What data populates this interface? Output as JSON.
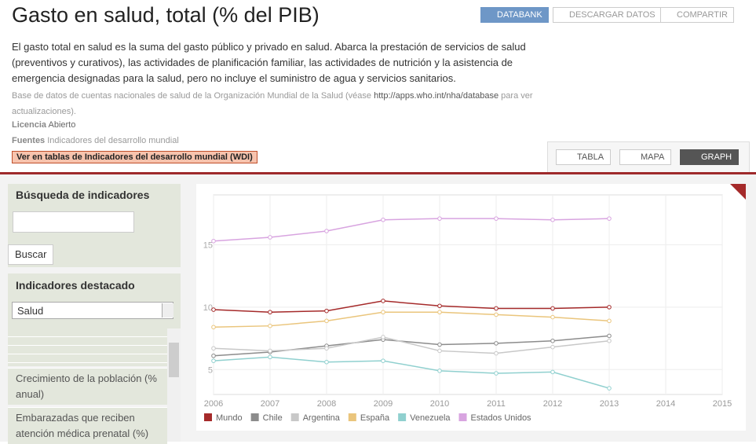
{
  "header": {
    "title": "Gasto en salud, total (% del PIB)",
    "buttons": [
      "DATABANK",
      "DESCARGAR DATOS",
      "COMPARTIR"
    ]
  },
  "description": "El gasto total en salud es la suma del gasto público y privado en salud. Abarca la prestación de servicios de salud (preventivos y curativos), las actividades de planificación familiar, las actividades de nutrición y la asistencia de emergencia designadas para la salud, pero no incluye el suministro de agua y servicios sanitarios.",
  "source": {
    "before": "Base de datos de cuentas nacionales de salud de la Organización Mundial de la Salud (véase",
    "link": "http://apps.who.int/nha/database",
    "after": "para ver actualizaciones)."
  },
  "license": {
    "label": "Licencia",
    "value": "Abierto"
  },
  "sources": {
    "label": "Fuentes",
    "value": "Indicadores del desarrollo mundial"
  },
  "wdi_link": "Ver en tablas de Indicadores del desarrollo mundial (WDI)",
  "tabs": [
    "TABLA",
    "MAPA",
    "GRAPH"
  ],
  "sidebar": {
    "search_title": "Búsqueda de indicadores",
    "search_button": "Buscar",
    "featured_title": "Indicadores destacado",
    "select_value": "Salud",
    "items": [
      "Crecimiento de la población (% anual)",
      "Embarazadas que reciben atención médica prenatal (%)"
    ]
  },
  "chart_data": {
    "type": "line",
    "x": [
      2006,
      2007,
      2008,
      2009,
      2010,
      2011,
      2012,
      2013
    ],
    "xlim": [
      2006,
      2015
    ],
    "xticks": [
      2006,
      2007,
      2008,
      2009,
      2010,
      2011,
      2012,
      2013,
      2014,
      2015
    ],
    "ylim": [
      3,
      19
    ],
    "yticks": [
      5,
      10,
      15
    ],
    "grid": true,
    "series": [
      {
        "name": "Mundo",
        "color": "#a52a2a",
        "values": [
          9.8,
          9.6,
          9.7,
          10.5,
          10.1,
          9.9,
          9.9,
          10.0
        ]
      },
      {
        "name": "Chile",
        "color": "#8c8c8c",
        "values": [
          6.1,
          6.4,
          6.9,
          7.4,
          7.0,
          7.1,
          7.3,
          7.7
        ]
      },
      {
        "name": "Argentina",
        "color": "#c8c8c8",
        "values": [
          6.7,
          6.5,
          6.7,
          7.6,
          6.5,
          6.3,
          6.8,
          7.3
        ]
      },
      {
        "name": "España",
        "color": "#eac57c",
        "values": [
          8.4,
          8.5,
          8.9,
          9.6,
          9.6,
          9.4,
          9.2,
          8.9
        ]
      },
      {
        "name": "Venezuela",
        "color": "#90d0cf",
        "values": [
          5.7,
          6.0,
          5.6,
          5.7,
          4.9,
          4.7,
          4.8,
          3.5
        ]
      },
      {
        "name": "Estados Unidos",
        "color": "#d8a4e0",
        "values": [
          15.3,
          15.6,
          16.1,
          17.0,
          17.1,
          17.1,
          17.0,
          17.1
        ]
      }
    ]
  }
}
